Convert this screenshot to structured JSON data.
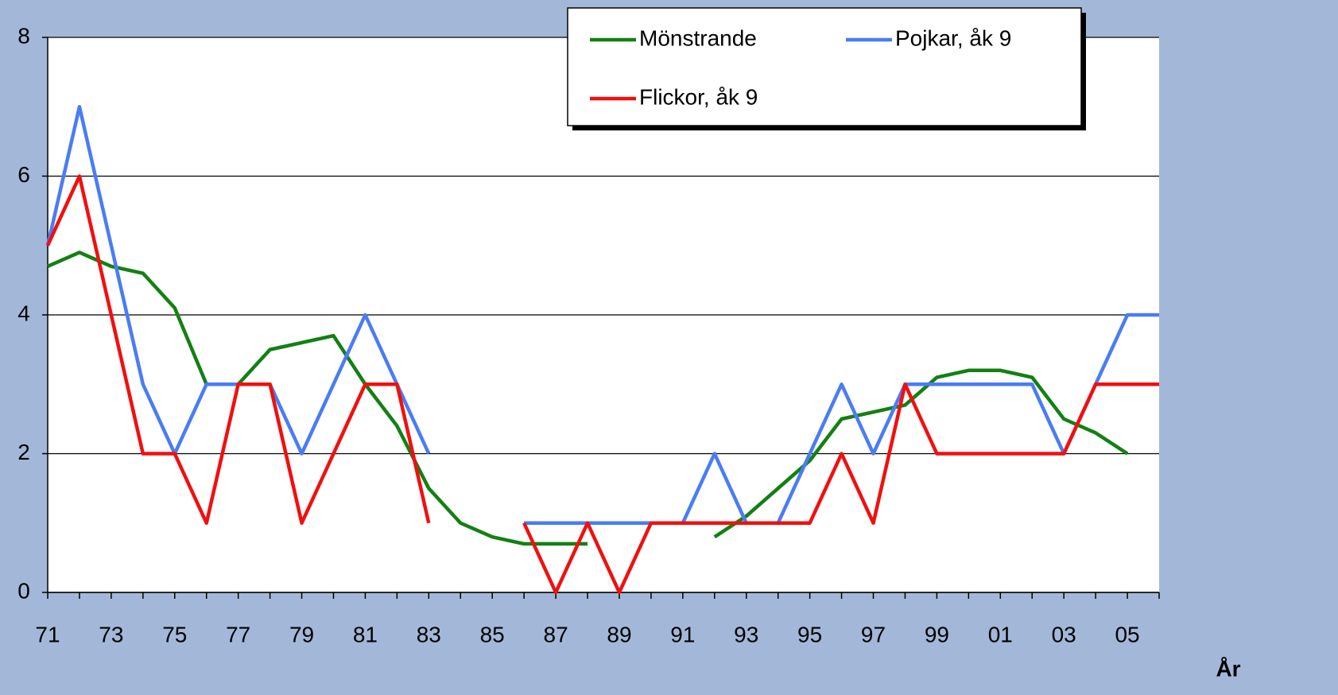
{
  "chart_data": {
    "type": "line",
    "x_label": "År",
    "categories": [
      "71",
      null,
      "73",
      null,
      "75",
      null,
      "77",
      null,
      "79",
      null,
      "81",
      null,
      "83",
      null,
      "85",
      null,
      "87",
      null,
      "89",
      null,
      "91",
      null,
      "93",
      null,
      "95",
      null,
      "97",
      null,
      "99",
      null,
      "01",
      null,
      "03",
      null,
      "05",
      null
    ],
    "series": [
      {
        "name": "Mönstrande",
        "color": "#138013",
        "values": [
          4.7,
          4.9,
          4.7,
          4.6,
          4.1,
          3.0,
          3.0,
          3.5,
          3.6,
          3.7,
          3.0,
          2.4,
          1.5,
          1.0,
          0.8,
          0.7,
          0.7,
          0.7,
          null,
          null,
          null,
          0.8,
          1.1,
          1.5,
          1.9,
          2.5,
          2.6,
          2.7,
          3.1,
          3.2,
          3.2,
          3.1,
          2.5,
          2.3,
          2.0,
          null
        ]
      },
      {
        "name": "Pojkar, åk 9",
        "color": "#4a7cf5",
        "values": [
          5,
          7,
          5,
          3,
          2,
          3,
          3,
          3,
          2,
          3,
          4,
          3,
          2,
          null,
          null,
          1,
          1,
          1,
          1,
          1,
          1,
          2,
          1,
          1,
          2,
          3,
          2,
          3,
          3,
          3,
          3,
          3,
          2,
          3,
          4,
          4
        ]
      },
      {
        "name": "Flickor, åk 9",
        "color": "#f01010",
        "values": [
          5,
          6,
          4,
          2,
          2,
          1,
          3,
          3,
          1,
          2,
          3,
          3,
          1,
          null,
          null,
          1,
          0,
          1,
          0,
          1,
          1,
          1,
          1,
          1,
          1,
          2,
          1,
          3,
          2,
          2,
          2,
          2,
          2,
          3,
          3,
          3
        ]
      }
    ],
    "ylim": [
      0,
      8
    ],
    "yticks": [
      0,
      2,
      4,
      6,
      8
    ],
    "grid": true,
    "legend": "top-right"
  }
}
